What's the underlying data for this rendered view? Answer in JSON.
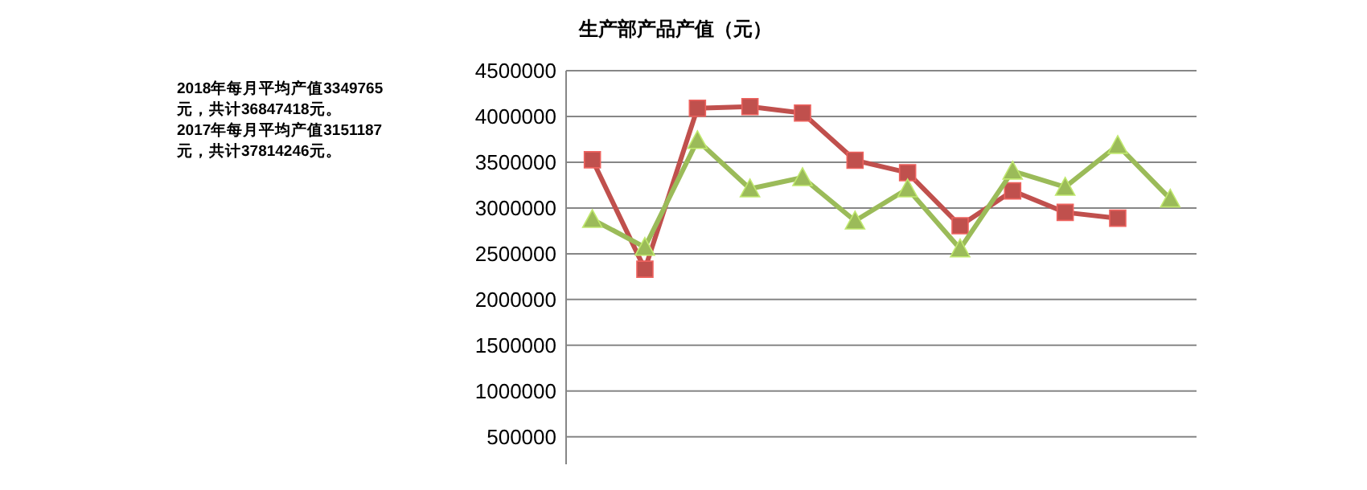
{
  "chart_data": {
    "type": "line",
    "title": "生产部产品产值（元）",
    "annotations": [
      "2018年每月平均产值3349765元，共计36847418元。",
      "2017年每月平均产值3151187元，共计37814246元。"
    ],
    "categories": [
      null,
      null,
      null,
      null,
      null,
      null,
      null,
      null,
      null,
      null,
      null,
      null
    ],
    "series": [
      {
        "color": "#c0504d",
        "marker": "square",
        "values": [
          3527000,
          2331000,
          4090000,
          4107000,
          4037000,
          3521000,
          3386000,
          2806000,
          3187000,
          2952000,
          2888000,
          null
        ]
      },
      {
        "color": "#9bbb59",
        "marker": "triangle",
        "values": [
          2876000,
          2571000,
          3738000,
          3210000,
          3333000,
          2859000,
          3210000,
          2554000,
          3404000,
          3228000,
          3685000,
          3099000
        ]
      }
    ],
    "ylim": [
      200000,
      4500000
    ],
    "yticks": [
      500000,
      1000000,
      1500000,
      2000000,
      2500000,
      3000000,
      3500000,
      4000000,
      4500000
    ],
    "grid": "y",
    "tick_labels": "y"
  }
}
